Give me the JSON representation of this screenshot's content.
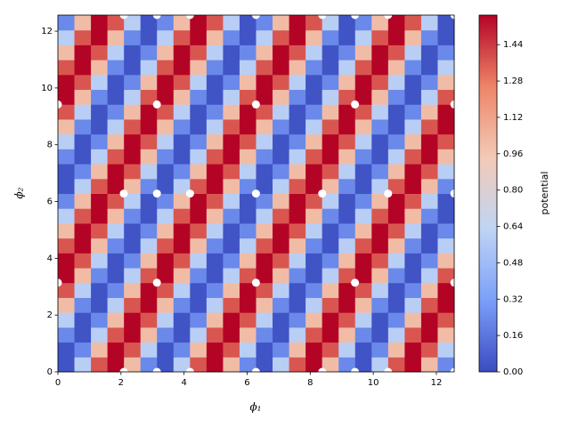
{
  "chart_data": {
    "type": "heatmap",
    "x_label": "ϕ₁",
    "y_label": "ϕ₂",
    "colorbar_label": "potential",
    "xlim": [
      0,
      12.566
    ],
    "ylim": [
      0,
      12.566
    ],
    "xticks": [
      0,
      2,
      4,
      6,
      8,
      10,
      12
    ],
    "yticks": [
      0,
      2,
      4,
      6,
      8,
      10,
      12
    ],
    "clim": [
      0,
      1.57
    ],
    "cticks": [
      {
        "value": 0,
        "label": "0.00"
      },
      {
        "value": 0.16,
        "label": "0.16"
      },
      {
        "value": 0.32,
        "label": "0.32"
      },
      {
        "value": 0.48,
        "label": "0.48"
      },
      {
        "value": 0.64,
        "label": "0.64"
      },
      {
        "value": 0.8,
        "label": "0.80"
      },
      {
        "value": 0.96,
        "label": "0.96"
      },
      {
        "value": 1.12,
        "label": "1.12"
      },
      {
        "value": 1.28,
        "label": "1.28"
      },
      {
        "value": 1.44,
        "label": "1.44"
      }
    ],
    "colormap": [
      "#3b4cc0",
      "#7b9ff9",
      "#c0d4f5",
      "#f2cbb7",
      "#ee8468",
      "#b40426"
    ],
    "points": {
      "color": "#ffffff",
      "x": [
        2.09,
        3.14,
        4.19,
        6.28,
        8.38,
        9.42,
        10.47,
        12.57,
        0,
        3.14,
        6.28,
        9.42,
        12.57,
        2.09,
        3.14,
        4.19,
        6.28,
        8.38,
        10.47,
        12.57,
        0,
        3.14,
        6.28,
        9.42,
        12.57,
        2.09,
        3.14,
        4.19,
        6.28,
        8.38,
        9.42,
        10.47,
        12.57
      ],
      "y": [
        12.57,
        12.57,
        12.57,
        12.57,
        12.57,
        12.57,
        12.57,
        12.57,
        9.42,
        9.42,
        9.42,
        9.42,
        9.42,
        6.28,
        6.28,
        6.28,
        6.28,
        6.28,
        6.28,
        6.28,
        3.14,
        3.14,
        3.14,
        3.14,
        3.14,
        0,
        0,
        0,
        0,
        0,
        0,
        0,
        0
      ]
    },
    "z": [
      [
        0.03,
        0.59,
        1.37,
        1.57,
        1.01,
        0.23,
        0.03,
        0.59,
        1.37,
        1.57,
        1.01,
        0.23,
        0.03,
        0.59,
        1.37,
        1.57,
        1.01,
        0.23,
        0.03,
        0.59,
        1.37,
        1.57,
        1.01,
        0.23
      ],
      [
        0.03,
        0.23,
        1.01,
        1.57,
        1.37,
        0.59,
        0.03,
        0.23,
        1.01,
        1.57,
        1.37,
        0.59,
        0.03,
        0.23,
        1.01,
        1.57,
        1.37,
        0.59,
        0.03,
        0.23,
        1.01,
        1.57,
        1.37,
        0.59
      ],
      [
        0.23,
        0.03,
        0.59,
        1.37,
        1.57,
        1.01,
        0.23,
        0.03,
        0.59,
        1.37,
        1.57,
        1.01,
        0.23,
        0.03,
        0.59,
        1.37,
        1.57,
        1.01,
        0.23,
        0.03,
        0.59,
        1.37,
        1.57,
        1.01
      ],
      [
        0.59,
        0.03,
        0.23,
        1.01,
        1.57,
        1.37,
        0.59,
        0.03,
        0.23,
        1.01,
        1.57,
        1.37,
        0.59,
        0.03,
        0.23,
        1.01,
        1.57,
        1.37,
        0.59,
        0.03,
        0.23,
        1.01,
        1.57,
        1.37
      ],
      [
        1.01,
        0.23,
        0.03,
        0.59,
        1.37,
        1.57,
        1.01,
        0.23,
        0.03,
        0.59,
        1.37,
        1.57,
        1.01,
        0.23,
        0.03,
        0.59,
        1.37,
        1.57,
        1.01,
        0.23,
        0.03,
        0.59,
        1.37,
        1.57
      ],
      [
        1.37,
        0.59,
        0.03,
        0.23,
        1.01,
        1.57,
        1.37,
        0.59,
        0.03,
        0.23,
        1.01,
        1.57,
        1.37,
        0.59,
        0.03,
        0.23,
        1.01,
        1.57,
        1.37,
        0.59,
        0.03,
        0.23,
        1.01,
        1.57
      ],
      [
        1.57,
        1.01,
        0.23,
        0.03,
        0.59,
        1.37,
        1.57,
        1.01,
        0.23,
        0.03,
        0.59,
        1.37,
        1.57,
        1.01,
        0.23,
        0.03,
        0.59,
        1.37,
        1.57,
        1.01,
        0.23,
        0.03,
        0.59,
        1.37
      ],
      [
        1.57,
        1.37,
        0.59,
        0.03,
        0.23,
        1.01,
        1.57,
        1.37,
        0.59,
        0.03,
        0.23,
        1.01,
        1.57,
        1.37,
        0.59,
        0.03,
        0.23,
        1.01,
        1.57,
        1.37,
        0.59,
        0.03,
        0.23,
        1.01
      ],
      [
        1.37,
        1.57,
        1.01,
        0.23,
        0.03,
        0.59,
        1.37,
        1.57,
        1.01,
        0.23,
        0.03,
        0.59,
        1.37,
        1.57,
        1.01,
        0.23,
        0.03,
        0.59,
        1.37,
        1.57,
        1.01,
        0.23,
        0.03,
        0.59
      ],
      [
        1.01,
        1.57,
        1.37,
        0.59,
        0.03,
        0.23,
        1.01,
        1.57,
        1.37,
        0.59,
        0.03,
        0.23,
        1.01,
        1.57,
        1.37,
        0.59,
        0.03,
        0.23,
        1.01,
        1.57,
        1.37,
        0.59,
        0.03,
        0.23
      ],
      [
        0.59,
        1.37,
        1.57,
        1.01,
        0.23,
        0.03,
        0.59,
        1.37,
        1.57,
        1.01,
        0.23,
        0.03,
        0.59,
        1.37,
        1.57,
        1.01,
        0.23,
        0.03,
        0.59,
        1.37,
        1.57,
        1.01,
        0.23,
        0.03
      ],
      [
        0.23,
        1.01,
        1.57,
        1.37,
        0.59,
        0.03,
        0.23,
        1.01,
        1.57,
        1.37,
        0.59,
        0.03,
        0.23,
        1.01,
        1.57,
        1.37,
        0.59,
        0.03,
        0.23,
        1.01,
        1.57,
        1.37,
        0.59,
        0.03
      ],
      [
        0.03,
        0.59,
        1.37,
        1.57,
        1.01,
        0.23,
        0.03,
        0.59,
        1.37,
        1.57,
        1.01,
        0.23,
        0.03,
        0.59,
        1.37,
        1.57,
        1.01,
        0.23,
        0.03,
        0.59,
        1.37,
        1.57,
        1.01,
        0.23
      ],
      [
        0.03,
        0.23,
        1.01,
        1.57,
        1.37,
        0.59,
        0.03,
        0.23,
        1.01,
        1.57,
        1.37,
        0.59,
        0.03,
        0.23,
        1.01,
        1.57,
        1.37,
        0.59,
        0.03,
        0.23,
        1.01,
        1.57,
        1.37,
        0.59
      ],
      [
        0.23,
        0.03,
        0.59,
        1.37,
        1.57,
        1.01,
        0.23,
        0.03,
        0.59,
        1.37,
        1.57,
        1.01,
        0.23,
        0.03,
        0.59,
        1.37,
        1.57,
        1.01,
        0.23,
        0.03,
        0.59,
        1.37,
        1.57,
        1.01
      ],
      [
        0.59,
        0.03,
        0.23,
        1.01,
        1.57,
        1.37,
        0.59,
        0.03,
        0.23,
        1.01,
        1.57,
        1.37,
        0.59,
        0.03,
        0.23,
        1.01,
        1.57,
        1.37,
        0.59,
        0.03,
        0.23,
        1.01,
        1.57,
        1.37
      ],
      [
        1.01,
        0.23,
        0.03,
        0.59,
        1.37,
        1.57,
        1.01,
        0.23,
        0.03,
        0.59,
        1.37,
        1.57,
        1.01,
        0.23,
        0.03,
        0.59,
        1.37,
        1.57,
        1.01,
        0.23,
        0.03,
        0.59,
        1.37,
        1.57
      ],
      [
        1.37,
        0.59,
        0.03,
        0.23,
        1.01,
        1.57,
        1.37,
        0.59,
        0.03,
        0.23,
        1.01,
        1.57,
        1.37,
        0.59,
        0.03,
        0.23,
        1.01,
        1.57,
        1.37,
        0.59,
        0.03,
        0.23,
        1.01,
        1.57
      ],
      [
        1.57,
        1.01,
        0.23,
        0.03,
        0.59,
        1.37,
        1.57,
        1.01,
        0.23,
        0.03,
        0.59,
        1.37,
        1.57,
        1.01,
        0.23,
        0.03,
        0.59,
        1.37,
        1.57,
        1.01,
        0.23,
        0.03,
        0.59,
        1.37
      ],
      [
        1.57,
        1.37,
        0.59,
        0.03,
        0.23,
        1.01,
        1.57,
        1.37,
        0.59,
        0.03,
        0.23,
        1.01,
        1.57,
        1.37,
        0.59,
        0.03,
        0.23,
        1.01,
        1.57,
        1.37,
        0.59,
        0.03,
        0.23,
        1.01
      ],
      [
        1.37,
        1.57,
        1.01,
        0.23,
        0.03,
        0.59,
        1.37,
        1.57,
        1.01,
        0.23,
        0.03,
        0.59,
        1.37,
        1.57,
        1.01,
        0.23,
        0.03,
        0.59,
        1.37,
        1.57,
        1.01,
        0.23,
        0.03,
        0.59
      ],
      [
        1.01,
        1.57,
        1.37,
        0.59,
        0.03,
        0.23,
        1.01,
        1.57,
        1.37,
        0.59,
        0.03,
        0.23,
        1.01,
        1.57,
        1.37,
        0.59,
        0.03,
        0.23,
        1.01,
        1.57,
        1.37,
        0.59,
        0.03,
        0.23
      ],
      [
        0.59,
        1.37,
        1.57,
        1.01,
        0.23,
        0.03,
        0.59,
        1.37,
        1.57,
        1.01,
        0.23,
        0.03,
        0.59,
        1.37,
        1.57,
        1.01,
        0.23,
        0.03,
        0.59,
        1.37,
        1.57,
        1.01,
        0.23,
        0.03
      ],
      [
        0.23,
        1.01,
        1.57,
        1.37,
        0.59,
        0.03,
        0.23,
        1.01,
        1.57,
        1.37,
        0.59,
        0.03,
        0.23,
        1.01,
        1.57,
        1.37,
        0.59,
        0.03,
        0.23,
        1.01,
        1.57,
        1.37,
        0.59,
        0.03
      ]
    ]
  }
}
